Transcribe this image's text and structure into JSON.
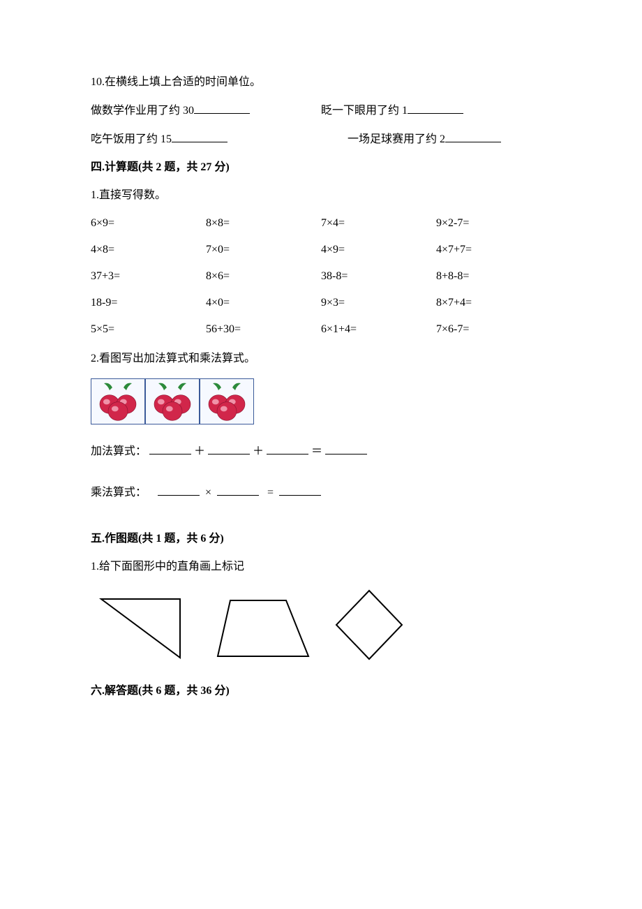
{
  "q10": {
    "num": "10.",
    "stem": "在横线上填上合适的时间单位。",
    "row1a_pre": "做数学作业用了约 30",
    "row1b_pre": "眨一下眼用了约 1",
    "row2a_pre": "吃午饭用了约 15",
    "row2b_pre": "一场足球赛用了约 2"
  },
  "s4": {
    "title": "四.计算题(共 2 题，共 27 分)",
    "q1": {
      "num": "1.",
      "stem": "直接写得数。",
      "rows": [
        [
          "6×9=",
          "8×8=",
          "7×4=",
          "9×2-7="
        ],
        [
          "4×8=",
          "7×0=",
          "4×9=",
          "4×7+7="
        ],
        [
          "37+3=",
          "8×6=",
          "38-8=",
          "8+8-8="
        ],
        [
          "18-9=",
          "4×0=",
          "9×3=",
          "8×7+4="
        ],
        [
          "5×5=",
          "56+30=",
          "6×1+4=",
          "7×6-7="
        ]
      ]
    },
    "q2": {
      "num": "2.",
      "stem": "看图写出加法算式和乘法算式。",
      "fruit_count": 3,
      "fruit_colors": {
        "fill": "#d1264a",
        "leaf": "#2c8a3b",
        "highlight": "#f6a6b8",
        "outline": "#8a1330"
      },
      "add_label": "加法算式：",
      "mul_label": "乘法算式：",
      "plus": "＋",
      "times": "×",
      "eq_full": "＝",
      "eq_ascii": "="
    }
  },
  "s5": {
    "title": "五.作图题(共 1 题，共 6 分)",
    "q1": {
      "num": "1.",
      "stem": "给下面图形中的直角画上标记"
    },
    "stroke": "#000000"
  },
  "s6": {
    "title": "六.解答题(共 6 题，共 36 分)"
  }
}
